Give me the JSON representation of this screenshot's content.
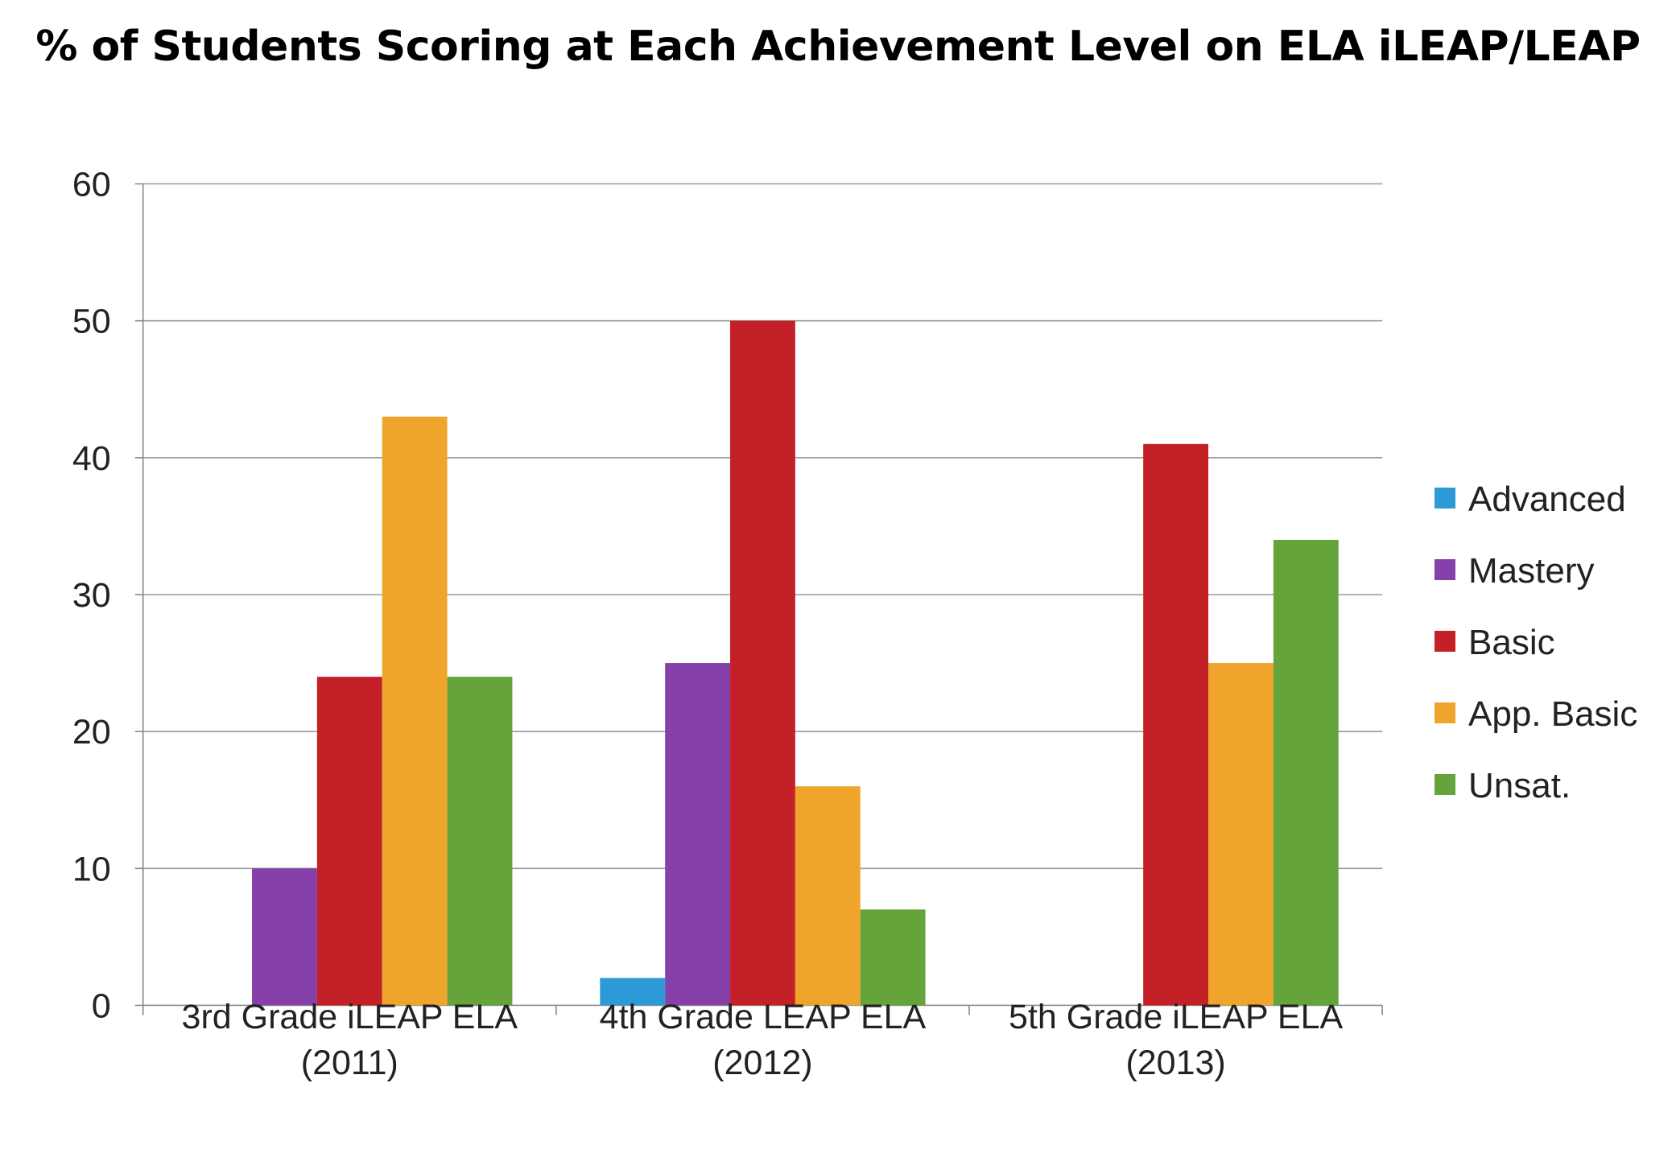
{
  "chart_data": {
    "type": "bar",
    "title": "% of Students Scoring at Each Achievement Level on ELA iLEAP/LEAP",
    "xlabel": "",
    "ylabel": "",
    "ylim": [
      0,
      60
    ],
    "yticks": [
      0,
      10,
      20,
      30,
      40,
      50,
      60
    ],
    "grid": true,
    "legend_position": "right",
    "categories": [
      [
        "3rd Grade iLEAP ELA",
        "(2011)"
      ],
      [
        "4th Grade LEAP ELA",
        "(2012)"
      ],
      [
        "5th Grade iLEAP ELA",
        "(2013)"
      ]
    ],
    "series": [
      {
        "name": "Advanced",
        "color": "#2b9ad6",
        "values": [
          0,
          2,
          0
        ]
      },
      {
        "name": "Mastery",
        "color": "#8640a9",
        "values": [
          10,
          25,
          0
        ]
      },
      {
        "name": "Basic",
        "color": "#c42027",
        "values": [
          24,
          50,
          41
        ]
      },
      {
        "name": "App. Basic",
        "color": "#efa42b",
        "values": [
          43,
          16,
          25
        ]
      },
      {
        "name": "Unsat.",
        "color": "#64a43b",
        "values": [
          24,
          7,
          34
        ]
      }
    ]
  }
}
